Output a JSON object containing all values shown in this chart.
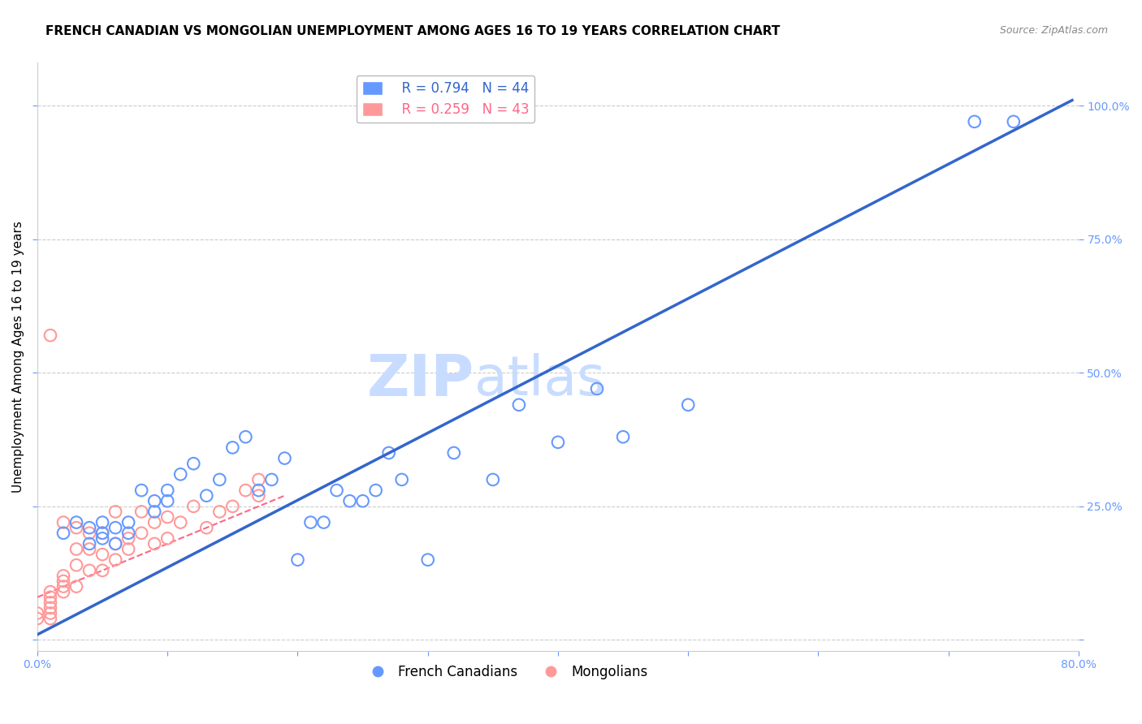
{
  "title": "FRENCH CANADIAN VS MONGOLIAN UNEMPLOYMENT AMONG AGES 16 TO 19 YEARS CORRELATION CHART",
  "source": "Source: ZipAtlas.com",
  "ylabel": "Unemployment Among Ages 16 to 19 years",
  "xlabel": "",
  "xlim": [
    0.0,
    0.8
  ],
  "ylim": [
    -0.02,
    1.08
  ],
  "xticks": [
    0.0,
    0.1,
    0.2,
    0.3,
    0.4,
    0.5,
    0.6,
    0.7,
    0.8
  ],
  "xticklabels": [
    "0.0%",
    "",
    "",
    "",
    "",
    "",
    "",
    "",
    "80.0%"
  ],
  "yticks": [
    0.0,
    0.25,
    0.5,
    0.75,
    1.0
  ],
  "yticklabels": [
    "",
    "25.0%",
    "50.0%",
    "75.0%",
    "100.0%"
  ],
  "blue_color": "#6699FF",
  "pink_color": "#FF9999",
  "blue_line_color": "#3366CC",
  "pink_line_color": "#FF6688",
  "grid_color": "#CCCCCC",
  "tick_color": "#6699FF",
  "watermark": "ZIPatlas",
  "watermark_color": "#C8DCFF",
  "legend_blue_r": "R = 0.794",
  "legend_blue_n": "N = 44",
  "legend_pink_r": "R = 0.259",
  "legend_pink_n": "N = 43",
  "blue_x": [
    0.02,
    0.03,
    0.04,
    0.04,
    0.05,
    0.05,
    0.05,
    0.06,
    0.06,
    0.07,
    0.07,
    0.08,
    0.09,
    0.09,
    0.1,
    0.1,
    0.11,
    0.12,
    0.13,
    0.14,
    0.15,
    0.16,
    0.17,
    0.18,
    0.19,
    0.2,
    0.21,
    0.22,
    0.23,
    0.24,
    0.25,
    0.26,
    0.27,
    0.28,
    0.3,
    0.32,
    0.35,
    0.37,
    0.4,
    0.43,
    0.45,
    0.5,
    0.72,
    0.75
  ],
  "blue_y": [
    0.2,
    0.22,
    0.18,
    0.21,
    0.19,
    0.2,
    0.22,
    0.18,
    0.21,
    0.2,
    0.22,
    0.28,
    0.24,
    0.26,
    0.26,
    0.28,
    0.31,
    0.33,
    0.27,
    0.3,
    0.36,
    0.38,
    0.28,
    0.3,
    0.34,
    0.15,
    0.22,
    0.22,
    0.28,
    0.26,
    0.26,
    0.28,
    0.35,
    0.3,
    0.15,
    0.35,
    0.3,
    0.44,
    0.37,
    0.47,
    0.38,
    0.44,
    0.97,
    0.97
  ],
  "blue_line_x0": 0.0,
  "blue_line_y0": 0.01,
  "blue_line_x1": 0.795,
  "blue_line_y1": 1.01,
  "pink_x": [
    0.0,
    0.0,
    0.01,
    0.01,
    0.01,
    0.01,
    0.01,
    0.01,
    0.02,
    0.02,
    0.02,
    0.02,
    0.02,
    0.03,
    0.03,
    0.03,
    0.03,
    0.04,
    0.04,
    0.04,
    0.05,
    0.05,
    0.05,
    0.06,
    0.06,
    0.06,
    0.07,
    0.07,
    0.08,
    0.08,
    0.09,
    0.09,
    0.1,
    0.1,
    0.11,
    0.12,
    0.13,
    0.14,
    0.15,
    0.16,
    0.17,
    0.17,
    0.01
  ],
  "pink_y": [
    0.04,
    0.05,
    0.04,
    0.05,
    0.06,
    0.07,
    0.08,
    0.09,
    0.09,
    0.1,
    0.11,
    0.12,
    0.22,
    0.1,
    0.14,
    0.17,
    0.21,
    0.13,
    0.17,
    0.2,
    0.13,
    0.16,
    0.2,
    0.15,
    0.18,
    0.24,
    0.17,
    0.19,
    0.2,
    0.24,
    0.18,
    0.22,
    0.19,
    0.23,
    0.22,
    0.25,
    0.21,
    0.24,
    0.25,
    0.28,
    0.27,
    0.3,
    0.57
  ],
  "pink_line_x0": 0.0,
  "pink_line_y0": 0.08,
  "pink_line_x1": 0.19,
  "pink_line_y1": 0.27,
  "title_fontsize": 11,
  "source_fontsize": 9,
  "axis_tick_fontsize": 10,
  "ylabel_fontsize": 11,
  "legend_fontsize": 12,
  "watermark_fontsize": 52
}
